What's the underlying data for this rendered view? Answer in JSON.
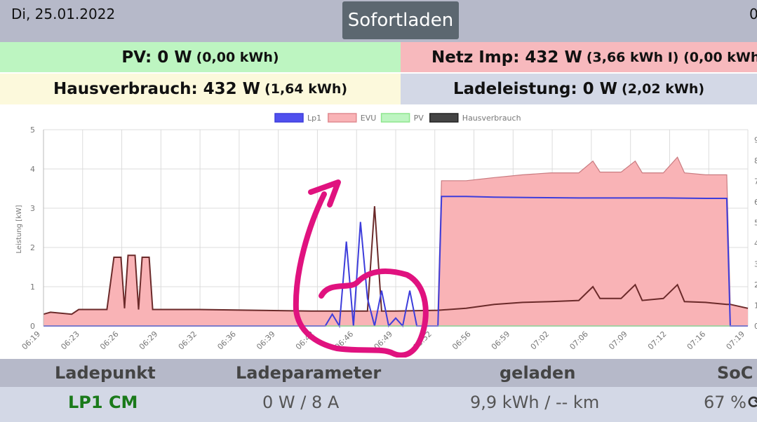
{
  "header": {
    "date": "Di, 25.01.2022",
    "mode_button": "Sofortladen",
    "right_fragment": "0"
  },
  "tiles": {
    "pv": {
      "label": "PV: 0 W",
      "detail": "(0,00 kWh)"
    },
    "netz": {
      "label": "Netz Imp: 432 W",
      "detail": "(3,66 kWh I) (0,00 kWh"
    },
    "haus": {
      "label": "Hausverbrauch: 432 W",
      "detail": "(1,64 kWh)"
    },
    "lade": {
      "label": "Ladeleistung: 0 W",
      "detail": "(2,02 kWh)"
    }
  },
  "colors": {
    "pv_tile": "#bdf5c1",
    "netz_tile": "#f7b9bd",
    "haus_tile": "#fcf9dc",
    "lade_tile": "#d3d8e6",
    "lp1": "#3d3ddb",
    "evu_fill": "#f9b3b6",
    "evu_line": "#c97b80",
    "pv": "#8ee68e",
    "hausverbrauch": "#6b2a2a",
    "annotation": "#e0127f"
  },
  "chart_data": {
    "type": "area",
    "ylabel": "Leistung [kW]",
    "ylim": [
      0,
      5
    ],
    "yticks": [
      "0",
      "1",
      "2",
      "3",
      "4",
      "5"
    ],
    "xticks": [
      "06:19",
      "06:23",
      "06:26",
      "06:29",
      "06:32",
      "06:36",
      "06:39",
      "06:42",
      "06:46",
      "06:49",
      "06:52",
      "06:56",
      "06:59",
      "07:02",
      "07:06",
      "07:09",
      "07:12",
      "07:16",
      "07:19"
    ],
    "legend_position": "top",
    "right_axis_ticks": [
      "0",
      "1",
      "2",
      "3",
      "4",
      "5",
      "6",
      "7",
      "8",
      "9"
    ],
    "series": [
      {
        "name": "Lp1",
        "color": "#3d3ddb",
        "points": [
          [
            0,
            0
          ],
          [
            40,
            0
          ],
          [
            41,
            0.3
          ],
          [
            42,
            0
          ],
          [
            43,
            2.15
          ],
          [
            44,
            0
          ],
          [
            45,
            2.65
          ],
          [
            46,
            0.7
          ],
          [
            47,
            0
          ],
          [
            48,
            0.9
          ],
          [
            49,
            0
          ],
          [
            50,
            0.2
          ],
          [
            51,
            0
          ],
          [
            52,
            0.9
          ],
          [
            53,
            0
          ],
          [
            54,
            0
          ],
          [
            56,
            0
          ],
          [
            56.5,
            3.3
          ],
          [
            60,
            3.3
          ],
          [
            64,
            3.28
          ],
          [
            70,
            3.27
          ],
          [
            76,
            3.26
          ],
          [
            82,
            3.26
          ],
          [
            88,
            3.26
          ],
          [
            94,
            3.25
          ],
          [
            97,
            3.25
          ],
          [
            97.5,
            0
          ],
          [
            100,
            0
          ]
        ]
      },
      {
        "name": "EVU",
        "color": "#c97b80",
        "points": [
          [
            0,
            0.3
          ],
          [
            1,
            0.35
          ],
          [
            4,
            0.3
          ],
          [
            5,
            0.42
          ],
          [
            9,
            0.42
          ],
          [
            10,
            1.75
          ],
          [
            11,
            1.75
          ],
          [
            11.5,
            0.45
          ],
          [
            12,
            1.8
          ],
          [
            13,
            1.8
          ],
          [
            13.5,
            0.42
          ],
          [
            14,
            1.75
          ],
          [
            15,
            1.75
          ],
          [
            15.5,
            0.42
          ],
          [
            22,
            0.42
          ],
          [
            30,
            0.4
          ],
          [
            38,
            0.38
          ],
          [
            44,
            0.38
          ],
          [
            48,
            0.38
          ],
          [
            50,
            0.38
          ],
          [
            55,
            0.4
          ],
          [
            56,
            0.4
          ],
          [
            56.5,
            3.7
          ],
          [
            60,
            3.7
          ],
          [
            64,
            3.78
          ],
          [
            68,
            3.85
          ],
          [
            72,
            3.9
          ],
          [
            76,
            3.9
          ],
          [
            78,
            4.2
          ],
          [
            79,
            3.92
          ],
          [
            82,
            3.92
          ],
          [
            84,
            4.2
          ],
          [
            85,
            3.9
          ],
          [
            88,
            3.9
          ],
          [
            90,
            4.3
          ],
          [
            91,
            3.9
          ],
          [
            94,
            3.85
          ],
          [
            97,
            3.85
          ],
          [
            97.5,
            0.55
          ],
          [
            100,
            0.45
          ]
        ]
      },
      {
        "name": "PV",
        "color": "#8ee68e",
        "points": [
          [
            0,
            0
          ],
          [
            100,
            0
          ]
        ]
      },
      {
        "name": "Hausverbrauch",
        "color": "#6b2a2a",
        "points": [
          [
            0,
            0.3
          ],
          [
            1,
            0.35
          ],
          [
            4,
            0.3
          ],
          [
            5,
            0.42
          ],
          [
            9,
            0.42
          ],
          [
            10,
            1.75
          ],
          [
            11,
            1.75
          ],
          [
            11.5,
            0.45
          ],
          [
            12,
            1.8
          ],
          [
            13,
            1.8
          ],
          [
            13.5,
            0.42
          ],
          [
            14,
            1.75
          ],
          [
            15,
            1.75
          ],
          [
            15.5,
            0.42
          ],
          [
            22,
            0.42
          ],
          [
            30,
            0.4
          ],
          [
            38,
            0.38
          ],
          [
            44,
            0.38
          ],
          [
            46,
            0.38
          ],
          [
            47,
            3.05
          ],
          [
            48,
            0.38
          ],
          [
            50,
            0.38
          ],
          [
            56,
            0.4
          ],
          [
            60,
            0.45
          ],
          [
            64,
            0.55
          ],
          [
            68,
            0.6
          ],
          [
            72,
            0.62
          ],
          [
            76,
            0.65
          ],
          [
            78,
            1.0
          ],
          [
            79,
            0.7
          ],
          [
            82,
            0.7
          ],
          [
            84,
            1.05
          ],
          [
            85,
            0.65
          ],
          [
            88,
            0.7
          ],
          [
            90,
            1.05
          ],
          [
            91,
            0.62
          ],
          [
            94,
            0.6
          ],
          [
            97,
            0.55
          ],
          [
            97.5,
            0.55
          ],
          [
            100,
            0.45
          ]
        ]
      }
    ]
  },
  "table": {
    "headers": [
      "Ladepunkt",
      "Ladeparameter",
      "geladen",
      "SoC"
    ],
    "row": {
      "ladepunkt": "LP1 CM",
      "parameter": "0 W / 8 A",
      "geladen": "9,9 kWh / -- km",
      "soc": "67 %"
    }
  }
}
